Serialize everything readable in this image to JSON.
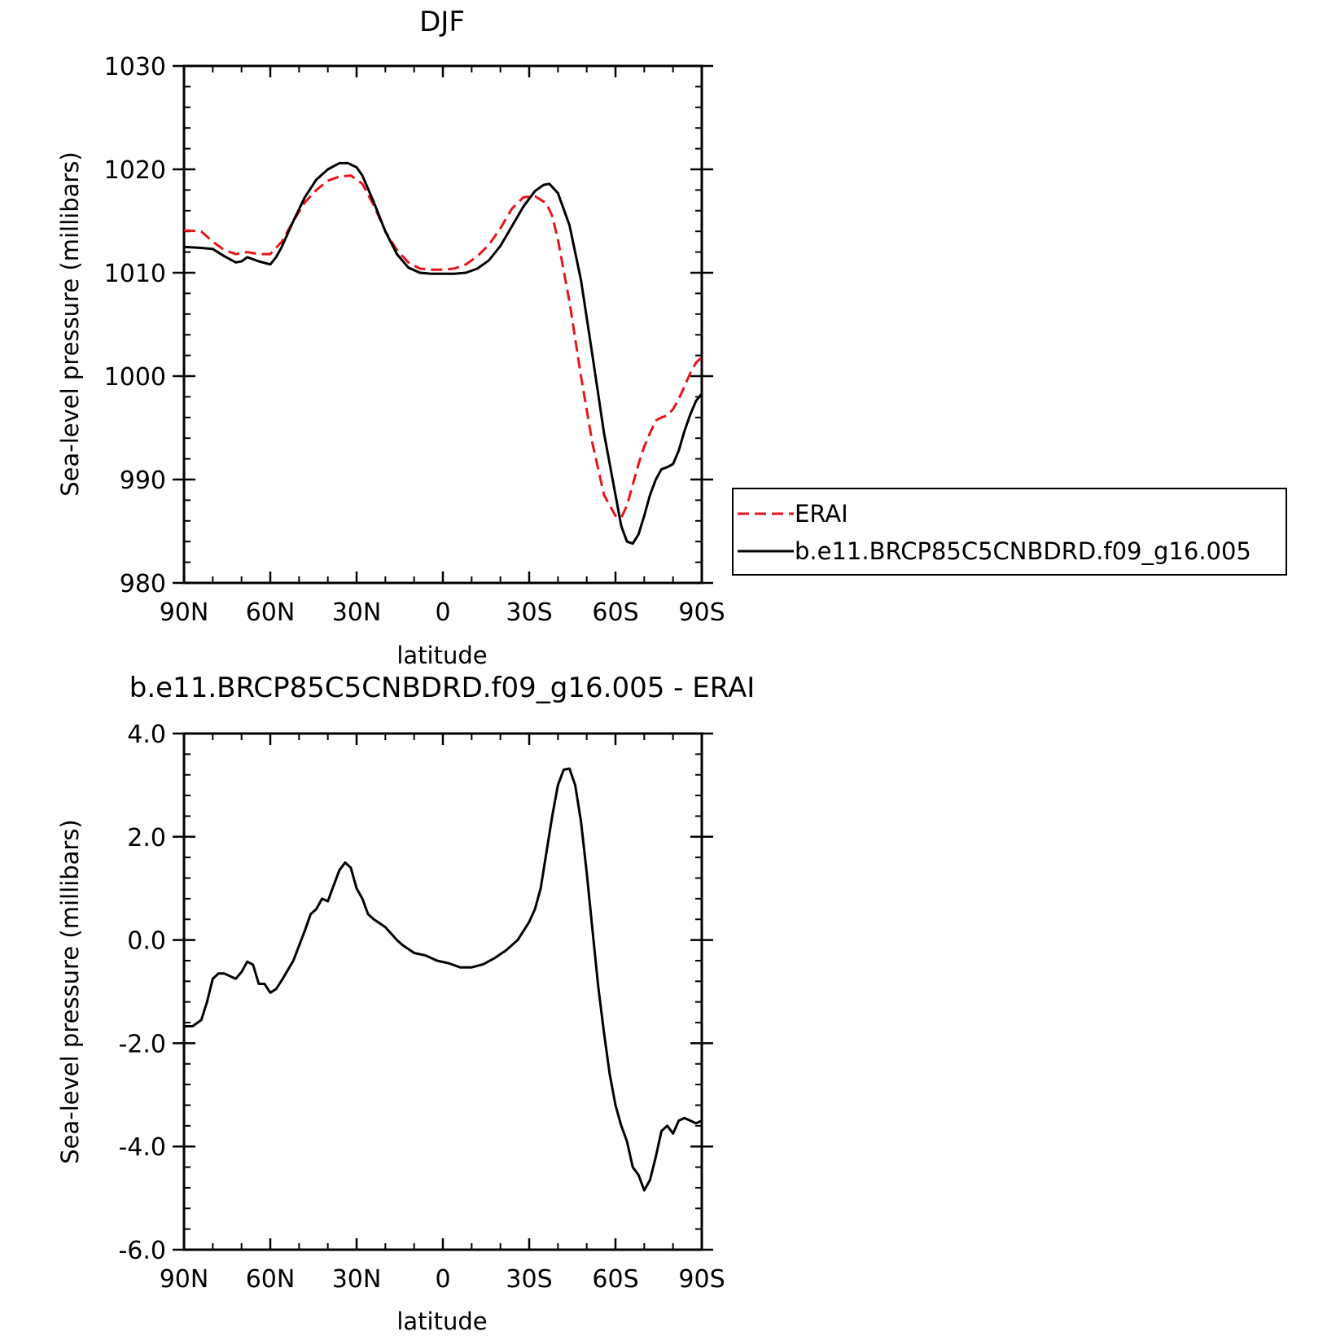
{
  "chart_data": [
    {
      "type": "line",
      "title": "DJF",
      "xlabel": "latitude",
      "ylabel": "Sea-level pressure (millibars)",
      "xlim": [
        90,
        -90
      ],
      "ylim": [
        980,
        1030
      ],
      "x_ticks": [
        {
          "value": 90,
          "label": "90N"
        },
        {
          "value": 60,
          "label": "60N"
        },
        {
          "value": 30,
          "label": "30N"
        },
        {
          "value": 0,
          "label": "0"
        },
        {
          "value": -30,
          "label": "30S"
        },
        {
          "value": -60,
          "label": "60S"
        },
        {
          "value": -90,
          "label": "90S"
        }
      ],
      "y_ticks": [
        {
          "value": 1030,
          "label": "1030"
        },
        {
          "value": 1020,
          "label": "1020"
        },
        {
          "value": 1010,
          "label": "1010"
        },
        {
          "value": 1000,
          "label": "1000"
        },
        {
          "value": 990,
          "label": "990"
        },
        {
          "value": 980,
          "label": "980"
        }
      ],
      "legend": {
        "placement": "right"
      },
      "series": [
        {
          "name": "ERAI",
          "color": "#e8141b",
          "dash": true,
          "x": [
            90,
            84,
            80,
            76,
            72,
            68,
            64,
            60,
            56,
            52,
            48,
            44,
            40,
            36,
            32,
            28,
            24,
            20,
            16,
            12,
            8,
            4,
            0,
            -4,
            -8,
            -12,
            -16,
            -20,
            -24,
            -28,
            -32,
            -36,
            -38,
            -40,
            -44,
            -48,
            -52,
            -56,
            -60,
            -62,
            -64,
            -66,
            -68,
            -70,
            -72,
            -74,
            -76,
            -78,
            -80,
            -82,
            -84,
            -86,
            -88,
            -90
          ],
          "y": [
            1014.1,
            1014.0,
            1013.0,
            1012.2,
            1011.8,
            1012.0,
            1011.8,
            1011.8,
            1013.0,
            1015.0,
            1016.8,
            1018.0,
            1018.9,
            1019.3,
            1019.4,
            1018.6,
            1016.5,
            1014.0,
            1012.2,
            1011.0,
            1010.4,
            1010.3,
            1010.3,
            1010.4,
            1010.8,
            1011.6,
            1012.7,
            1014.3,
            1016.2,
            1017.3,
            1017.4,
            1016.7,
            1015.5,
            1013.2,
            1007.2,
            1000.0,
            993.5,
            988.5,
            986.5,
            986.3,
            987.5,
            989.5,
            991.5,
            993.2,
            994.5,
            995.7,
            996.0,
            996.2,
            996.8,
            997.8,
            999.0,
            1000.3,
            1001.3,
            1001.8
          ]
        },
        {
          "name": "b.e11.BRCP85C5CNBDRD.f09_g16.005",
          "color": "#000000",
          "dash": false,
          "x": [
            90,
            84,
            80,
            76,
            72,
            70,
            68,
            64,
            60,
            58,
            56,
            52,
            48,
            44,
            40,
            36,
            33,
            30,
            28,
            24,
            20,
            16,
            12,
            8,
            4,
            0,
            -4,
            -8,
            -12,
            -16,
            -20,
            -24,
            -28,
            -32,
            -35,
            -37,
            -40,
            -44,
            -48,
            -52,
            -56,
            -60,
            -62,
            -64,
            -66,
            -68,
            -70,
            -72,
            -74,
            -76,
            -78,
            -80,
            -82,
            -84,
            -86,
            -88,
            -90
          ],
          "y": [
            1012.5,
            1012.4,
            1012.3,
            1011.6,
            1011.0,
            1011.1,
            1011.5,
            1011.1,
            1010.8,
            1011.5,
            1012.5,
            1015.0,
            1017.3,
            1019.0,
            1020.0,
            1020.6,
            1020.6,
            1020.2,
            1019.4,
            1016.8,
            1014.0,
            1011.8,
            1010.5,
            1010.0,
            1009.9,
            1009.9,
            1009.9,
            1010.0,
            1010.4,
            1011.2,
            1012.6,
            1014.5,
            1016.4,
            1017.9,
            1018.5,
            1018.6,
            1017.7,
            1014.6,
            1009.3,
            1002.0,
            994.5,
            988.5,
            985.5,
            984.0,
            983.8,
            984.7,
            986.5,
            988.5,
            990.0,
            991.0,
            991.2,
            991.5,
            992.8,
            994.7,
            996.3,
            997.6,
            998.3
          ]
        }
      ]
    },
    {
      "type": "line",
      "title": "b.e11.BRCP85C5CNBDRD.f09_g16.005 - ERAI",
      "xlabel": "latitude",
      "ylabel": "Sea-level pressure (millibars)",
      "xlim": [
        90,
        -90
      ],
      "ylim": [
        -6.0,
        4.0
      ],
      "x_ticks": [
        {
          "value": 90,
          "label": "90N"
        },
        {
          "value": 60,
          "label": "60N"
        },
        {
          "value": 30,
          "label": "30N"
        },
        {
          "value": 0,
          "label": "0"
        },
        {
          "value": -30,
          "label": "30S"
        },
        {
          "value": -60,
          "label": "60S"
        },
        {
          "value": -90,
          "label": "90S"
        }
      ],
      "y_ticks": [
        {
          "value": 4.0,
          "label": "4.0"
        },
        {
          "value": 2.0,
          "label": "2.0"
        },
        {
          "value": 0.0,
          "label": "0.0"
        },
        {
          "value": -2.0,
          "label": "-2.0"
        },
        {
          "value": -4.0,
          "label": "-4.0"
        },
        {
          "value": -6.0,
          "label": "-6.0"
        }
      ],
      "series": [
        {
          "color": "#000000",
          "dash": false,
          "x": [
            90,
            87,
            84,
            82,
            80,
            78,
            76,
            74,
            72,
            70,
            68,
            66,
            64,
            62,
            60,
            58,
            56,
            52,
            48,
            46,
            44,
            42,
            40,
            38,
            36,
            34,
            32,
            30,
            28,
            26,
            24,
            20,
            16,
            14,
            10,
            6,
            2,
            -2,
            -6,
            -10,
            -14,
            -18,
            -22,
            -26,
            -30,
            -32,
            -34,
            -36,
            -38,
            -40,
            -42,
            -44,
            -46,
            -48,
            -50,
            -52,
            -54,
            -56,
            -58,
            -60,
            -62,
            -64,
            -66,
            -68,
            -70,
            -72,
            -74,
            -76,
            -78,
            -80,
            -82,
            -84,
            -86,
            -88,
            -90
          ],
          "y": [
            -1.67,
            -1.67,
            -1.55,
            -1.2,
            -0.75,
            -0.65,
            -0.65,
            -0.7,
            -0.75,
            -0.62,
            -0.42,
            -0.48,
            -0.85,
            -0.85,
            -1.02,
            -0.95,
            -0.78,
            -0.4,
            0.18,
            0.5,
            0.6,
            0.8,
            0.75,
            1.05,
            1.35,
            1.5,
            1.4,
            1.0,
            0.8,
            0.5,
            0.4,
            0.25,
            0.0,
            -0.1,
            -0.25,
            -0.3,
            -0.4,
            -0.45,
            -0.53,
            -0.53,
            -0.47,
            -0.35,
            -0.2,
            0.0,
            0.35,
            0.6,
            1.0,
            1.7,
            2.4,
            3.0,
            3.3,
            3.32,
            3.0,
            2.3,
            1.3,
            0.2,
            -0.9,
            -1.8,
            -2.6,
            -3.2,
            -3.6,
            -3.9,
            -4.4,
            -4.55,
            -4.85,
            -4.65,
            -4.2,
            -3.7,
            -3.6,
            -3.75,
            -3.5,
            -3.45,
            -3.5,
            -3.55,
            -3.5
          ]
        }
      ]
    }
  ]
}
